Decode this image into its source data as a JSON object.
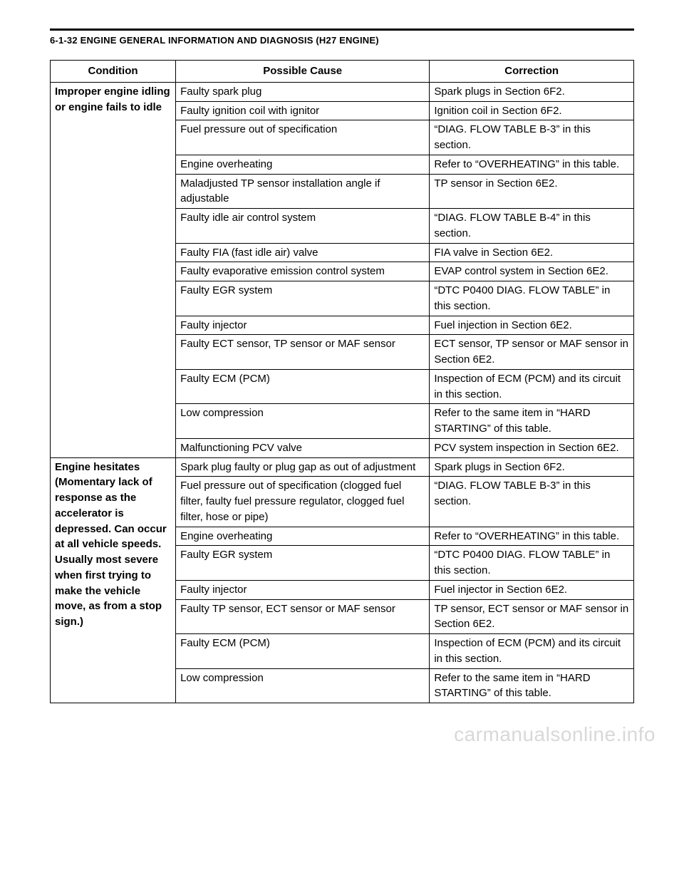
{
  "page_header": "6-1-32 ENGINE GENERAL INFORMATION AND DIAGNOSIS (H27 ENGINE)",
  "headers": {
    "condition": "Condition",
    "cause": "Possible Cause",
    "correction": "Correction"
  },
  "sections": [
    {
      "condition": "Improper engine idling or engine fails to idle",
      "rows": [
        {
          "cause": "Faulty spark plug",
          "correction": "Spark plugs in Section 6F2."
        },
        {
          "cause": "Faulty ignition coil with ignitor",
          "correction": "Ignition coil in Section 6F2."
        },
        {
          "cause": "Fuel pressure out of specification",
          "correction": "“DIAG. FLOW TABLE B-3” in this section."
        },
        {
          "cause": "Engine overheating",
          "correction": "Refer to “OVERHEATING” in this table."
        },
        {
          "cause": "Maladjusted TP sensor installation angle if adjustable",
          "correction": "TP sensor in Section 6E2."
        },
        {
          "cause": "Faulty idle air control system",
          "correction": "“DIAG. FLOW TABLE B-4” in this section."
        },
        {
          "cause": "Faulty FIA (fast idle air) valve",
          "correction": "FIA valve in Section 6E2."
        },
        {
          "cause": "Faulty evaporative emission control system",
          "correction": "EVAP control system in Section 6E2."
        },
        {
          "cause": "Faulty EGR system",
          "correction": "“DTC P0400 DIAG. FLOW TABLE” in this section."
        },
        {
          "cause": "Faulty injector",
          "correction": "Fuel injection in Section 6E2."
        },
        {
          "cause": "Faulty ECT sensor, TP sensor or MAF sensor",
          "correction": "ECT sensor, TP sensor or MAF sensor in Section 6E2."
        },
        {
          "cause": "Faulty ECM (PCM)",
          "correction": "Inspection of ECM (PCM) and its circuit in this section."
        },
        {
          "cause": "Low compression",
          "correction": "Refer to the same item in “HARD STARTING” of this table."
        },
        {
          "cause": "Malfunctioning PCV valve",
          "correction": "PCV system inspection in Section 6E2."
        }
      ]
    },
    {
      "condition": "Engine hesitates (Momentary lack of response as the accelerator is depressed. Can occur at all vehicle speeds.\nUsually most severe when first trying to make the vehicle move, as from a stop sign.)",
      "rows": [
        {
          "cause": "Spark plug faulty or plug gap as out of adjustment",
          "correction": "Spark plugs in Section 6F2."
        },
        {
          "cause": "Fuel pressure out of specification\n(clogged fuel filter, faulty fuel pressure regulator, clogged fuel filter, hose or pipe)",
          "correction": "“DIAG. FLOW TABLE B-3” in this section."
        },
        {
          "cause": "Engine overheating",
          "correction": "Refer to “OVERHEATING” in this table."
        },
        {
          "cause": "Faulty EGR system",
          "correction": "“DTC P0400 DIAG. FLOW TABLE” in this section."
        },
        {
          "cause": "Faulty injector",
          "correction": "Fuel injector in Section 6E2."
        },
        {
          "cause": "Faulty TP sensor, ECT sensor or MAF sensor",
          "correction": "TP sensor, ECT sensor or MAF sensor in Section 6E2."
        },
        {
          "cause": "Faulty ECM (PCM)",
          "correction": "Inspection of ECM (PCM) and its circuit in this section."
        },
        {
          "cause": "Low compression",
          "correction": "Refer to the same item in “HARD STARTING” of this table."
        }
      ]
    }
  ],
  "watermark": "carmanualsonline.info"
}
